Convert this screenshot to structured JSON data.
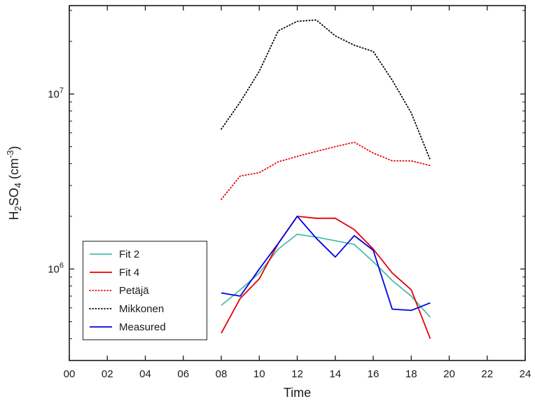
{
  "chart_data": {
    "type": "line",
    "title": "",
    "xlabel": "Time",
    "ylabel_plain": "H2SO4 (cm-3)",
    "ylabel_rich": [
      {
        "type": "text",
        "text": "H"
      },
      {
        "type": "sub",
        "text": "2"
      },
      {
        "type": "text",
        "text": "SO"
      },
      {
        "type": "sub",
        "text": "4"
      },
      {
        "type": "text",
        "text": " (cm"
      },
      {
        "type": "sup",
        "text": "-3"
      },
      {
        "type": "text",
        "text": ")"
      }
    ],
    "xlim": [
      0,
      24
    ],
    "ylim": [
      300000,
      32000000
    ],
    "yscale": "log",
    "grid": false,
    "axis_color": "#1a1a1a",
    "x_ticks": [
      {
        "value": 0,
        "label": "00"
      },
      {
        "value": 2,
        "label": "02"
      },
      {
        "value": 4,
        "label": "04"
      },
      {
        "value": 6,
        "label": "06"
      },
      {
        "value": 8,
        "label": "08"
      },
      {
        "value": 10,
        "label": "10"
      },
      {
        "value": 12,
        "label": "12"
      },
      {
        "value": 14,
        "label": "14"
      },
      {
        "value": 16,
        "label": "16"
      },
      {
        "value": 18,
        "label": "18"
      },
      {
        "value": 20,
        "label": "20"
      },
      {
        "value": 22,
        "label": "22"
      },
      {
        "value": 24,
        "label": "24"
      }
    ],
    "y_ticks": [
      {
        "value": 1000000,
        "base": "10",
        "exp": "6"
      },
      {
        "value": 10000000,
        "base": "10",
        "exp": "7"
      }
    ],
    "x": [
      8,
      9,
      10,
      11,
      12,
      13,
      14,
      15,
      16,
      17,
      18,
      19
    ],
    "series": [
      {
        "name": "Fit 2",
        "color": "#4dbdac",
        "style": "solid",
        "values": [
          620000,
          760000,
          950000,
          1300000,
          1580000,
          1520000,
          1450000,
          1380000,
          1100000,
          860000,
          700000,
          530000
        ]
      },
      {
        "name": "Fit 4",
        "color": "#e60000",
        "style": "solid",
        "values": [
          430000,
          680000,
          880000,
          1400000,
          2000000,
          1950000,
          1950000,
          1680000,
          1300000,
          950000,
          760000,
          400000
        ]
      },
      {
        "name": "Petäjä",
        "color": "#e60000",
        "style": "dotted",
        "values": [
          2500000,
          3400000,
          3550000,
          4100000,
          4400000,
          4700000,
          5000000,
          5300000,
          4600000,
          4150000,
          4150000,
          3900000
        ]
      },
      {
        "name": "Mikkonen",
        "color": "#000000",
        "style": "dotted",
        "values": [
          6300000,
          9000000,
          13500000,
          23000000,
          26000000,
          26500000,
          21500000,
          19000000,
          17500000,
          12000000,
          7800000,
          4200000
        ]
      },
      {
        "name": "Measured",
        "color": "#0000e0",
        "style": "solid",
        "values": [
          730000,
          700000,
          1000000,
          1400000,
          2000000,
          1500000,
          1170000,
          1550000,
          1280000,
          590000,
          580000,
          640000
        ]
      }
    ],
    "legend": {
      "position": "lower-left",
      "entries": [
        "Fit 2",
        "Fit 4",
        "Petäjä",
        "Mikkonen",
        "Measured"
      ]
    }
  }
}
